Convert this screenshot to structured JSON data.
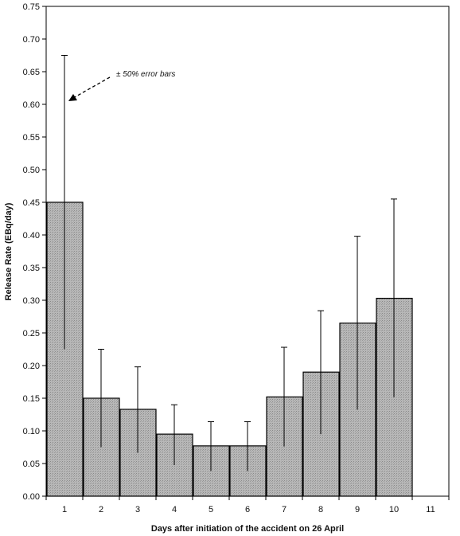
{
  "chart_data": {
    "type": "bar",
    "title": "",
    "xlabel": "Days after initiation of the accident on 26 April",
    "ylabel": "Release Rate (EBq/day)",
    "categories": [
      "1",
      "2",
      "3",
      "4",
      "5",
      "6",
      "7",
      "8",
      "9",
      "10",
      "11"
    ],
    "values": [
      0.45,
      0.15,
      0.133,
      0.095,
      0.077,
      0.077,
      0.152,
      0.19,
      0.265,
      0.303,
      0.0
    ],
    "error_upper": [
      0.675,
      0.225,
      0.198,
      0.14,
      0.114,
      0.114,
      0.228,
      0.284,
      0.398,
      0.455,
      0.0
    ],
    "ylim": [
      0,
      0.75
    ],
    "yticks": [
      "0.00",
      "0.05",
      "0.10",
      "0.15",
      "0.20",
      "0.25",
      "0.30",
      "0.35",
      "0.40",
      "0.45",
      "0.50",
      "0.55",
      "0.60",
      "0.65",
      "0.70",
      "0.75"
    ],
    "grid": false,
    "bar_color": "#b8b8b8",
    "annotation": "± 50% error bars"
  }
}
